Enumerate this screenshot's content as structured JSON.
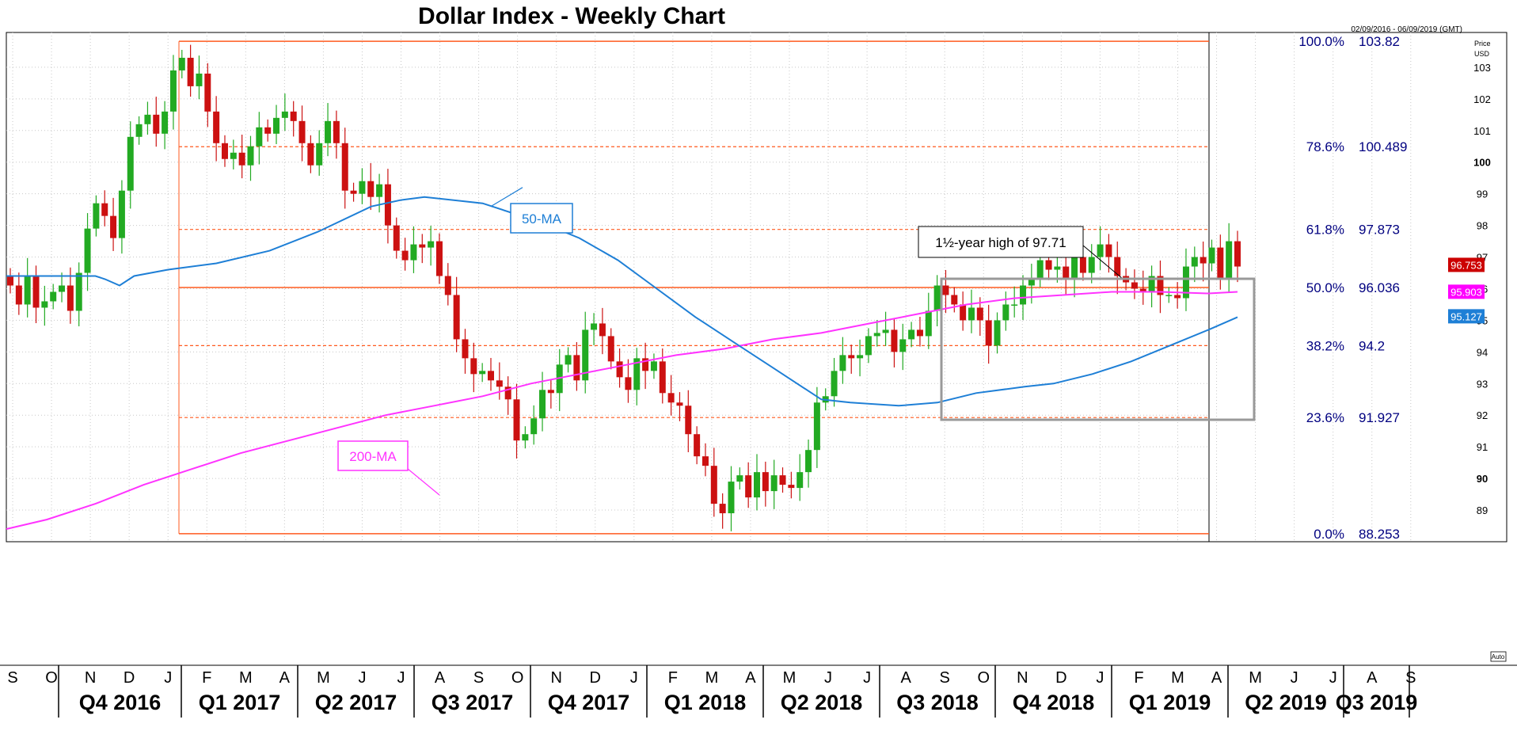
{
  "chart_data": {
    "type": "candlestick",
    "title": "Dollar Index - Weekly Chart",
    "date_range": "02/09/2016 - 06/09/2019 (GMT)",
    "price_unit": [
      "Price",
      "USD"
    ],
    "ylim": [
      88.0,
      104.1
    ],
    "y_ticks": [
      {
        "v": 103,
        "label": "103",
        "bold": false
      },
      {
        "v": 102,
        "label": "102",
        "bold": false
      },
      {
        "v": 101,
        "label": "101",
        "bold": false
      },
      {
        "v": 100,
        "label": "100",
        "bold": true
      },
      {
        "v": 99,
        "label": "99",
        "bold": false
      },
      {
        "v": 98,
        "label": "98",
        "bold": false
      },
      {
        "v": 97,
        "label": "97",
        "bold": false
      },
      {
        "v": 96,
        "label": "96",
        "bold": false
      },
      {
        "v": 95,
        "label": "95",
        "bold": false
      },
      {
        "v": 94,
        "label": "94",
        "bold": false
      },
      {
        "v": 93,
        "label": "93",
        "bold": false
      },
      {
        "v": 92,
        "label": "92",
        "bold": false
      },
      {
        "v": 91,
        "label": "91",
        "bold": false
      },
      {
        "v": 90,
        "label": "90",
        "bold": true
      },
      {
        "v": 89,
        "label": "89",
        "bold": false
      }
    ],
    "months": [
      "S",
      "O",
      "N",
      "D",
      "J",
      "F",
      "M",
      "A",
      "M",
      "J",
      "J",
      "A",
      "S",
      "O",
      "N",
      "D",
      "J",
      "F",
      "M",
      "A",
      "M",
      "J",
      "J",
      "A",
      "S",
      "O",
      "N",
      "D",
      "J",
      "F",
      "M",
      "A",
      "M",
      "J",
      "J",
      "A",
      "S"
    ],
    "quarters": [
      "Q4 2016",
      "Q1 2017",
      "Q2 2017",
      "Q3 2017",
      "Q4 2017",
      "Q1 2018",
      "Q2 2018",
      "Q3 2018",
      "Q4 2018",
      "Q1 2019",
      "Q2 2019",
      "Q3 2019"
    ],
    "fib_levels": [
      {
        "pct": "100.0%",
        "value": "103.82",
        "v": 103.82,
        "solid": true
      },
      {
        "pct": "78.6%",
        "value": "100.489",
        "v": 100.489,
        "solid": false
      },
      {
        "pct": "61.8%",
        "value": "97.873",
        "v": 97.873,
        "solid": false
      },
      {
        "pct": "50.0%",
        "value": "96.036",
        "v": 96.036,
        "solid": true
      },
      {
        "pct": "38.2%",
        "value": "94.2",
        "v": 94.2,
        "solid": false
      },
      {
        "pct": "23.6%",
        "value": "91.927",
        "v": 91.927,
        "solid": false
      },
      {
        "pct": "0.0%",
        "value": "88.253",
        "v": 88.253,
        "solid": true
      }
    ],
    "price_tags": [
      {
        "label": "96.753",
        "v": 96.753,
        "color": "#cc0000"
      },
      {
        "label": "95.903",
        "v": 95.903,
        "color": "#ff00ff"
      },
      {
        "label": "95.127",
        "v": 95.127,
        "color": "#1e7fd6"
      }
    ],
    "annotations": {
      "ma50_label": "50-MA",
      "ma200_label": "200-MA",
      "high_label": "1½-year high of 97.71",
      "auto": "Auto"
    },
    "colors": {
      "up": "#22aa22",
      "down": "#cc1111",
      "ma50": "#1e7fd6",
      "ma200": "#ff33ff",
      "fib": "#ff5a1f",
      "box": "#999999",
      "axis_text": "#000080"
    },
    "closes": [
      96.1,
      95.5,
      96.4,
      95.4,
      95.6,
      95.9,
      96.1,
      95.3,
      96.5,
      97.9,
      98.7,
      98.3,
      97.6,
      99.1,
      100.8,
      101.2,
      101.5,
      100.9,
      101.6,
      102.9,
      103.3,
      102.4,
      102.8,
      101.6,
      100.6,
      100.1,
      100.3,
      99.9,
      100.5,
      101.1,
      100.9,
      101.4,
      101.6,
      101.3,
      100.6,
      99.9,
      100.6,
      101.3,
      100.6,
      99.1,
      99.0,
      99.4,
      98.9,
      99.3,
      98.0,
      97.2,
      96.9,
      97.4,
      97.3,
      97.5,
      96.4,
      95.8,
      94.4,
      93.8,
      93.3,
      93.4,
      93.1,
      92.9,
      92.5,
      91.2,
      91.4,
      91.9,
      92.8,
      92.7,
      93.6,
      93.9,
      93.1,
      94.7,
      94.9,
      94.5,
      93.7,
      93.2,
      92.8,
      93.8,
      93.4,
      93.7,
      92.7,
      92.4,
      92.3,
      91.4,
      90.7,
      90.4,
      89.2,
      88.9,
      89.9,
      90.1,
      89.4,
      90.2,
      89.6,
      90.1,
      89.8,
      89.7,
      90.2,
      90.9,
      92.4,
      92.6,
      93.4,
      93.9,
      93.8,
      93.9,
      94.5,
      94.6,
      94.7,
      94.0,
      94.4,
      94.7,
      94.5,
      95.3,
      96.1,
      95.8,
      95.5,
      95.0,
      95.4,
      95.0,
      94.2,
      95.0,
      95.5,
      95.5,
      96.1,
      96.3,
      96.9,
      96.6,
      96.7,
      96.3,
      97.0,
      96.5,
      97.0,
      97.4,
      97.0,
      96.4,
      96.2,
      96.0,
      95.9,
      96.4,
      95.8,
      95.8,
      95.7,
      96.7,
      97.0,
      96.8,
      97.3,
      96.3,
      97.5,
      96.7
    ],
    "ma50": [
      [
        8,
        96.4
      ],
      [
        100,
        96.4
      ],
      [
        110,
        96.3
      ],
      [
        125,
        96.1
      ],
      [
        140,
        96.4
      ],
      [
        175,
        96.6
      ],
      [
        225,
        96.8
      ],
      [
        280,
        97.2
      ],
      [
        330,
        97.8
      ],
      [
        385,
        98.6
      ],
      [
        415,
        98.8
      ],
      [
        440,
        98.9
      ],
      [
        500,
        98.7
      ],
      [
        560,
        98.1
      ],
      [
        600,
        97.6
      ],
      [
        640,
        96.9
      ],
      [
        680,
        96.0
      ],
      [
        720,
        95.1
      ],
      [
        760,
        94.3
      ],
      [
        800,
        93.5
      ],
      [
        850,
        92.5
      ],
      [
        880,
        92.4
      ],
      [
        930,
        92.3
      ],
      [
        970,
        92.4
      ],
      [
        1010,
        92.7
      ],
      [
        1060,
        92.9
      ],
      [
        1090,
        93.0
      ],
      [
        1130,
        93.3
      ],
      [
        1170,
        93.7
      ],
      [
        1210,
        94.2
      ],
      [
        1250,
        94.7
      ],
      [
        1280,
        95.1
      ]
    ],
    "ma200": [
      [
        8,
        88.4
      ],
      [
        50,
        88.7
      ],
      [
        100,
        89.2
      ],
      [
        150,
        89.8
      ],
      [
        200,
        90.3
      ],
      [
        250,
        90.8
      ],
      [
        300,
        91.2
      ],
      [
        350,
        91.6
      ],
      [
        400,
        92.0
      ],
      [
        450,
        92.3
      ],
      [
        500,
        92.6
      ],
      [
        550,
        93.0
      ],
      [
        600,
        93.3
      ],
      [
        650,
        93.6
      ],
      [
        700,
        93.9
      ],
      [
        750,
        94.1
      ],
      [
        800,
        94.4
      ],
      [
        850,
        94.6
      ],
      [
        900,
        94.9
      ],
      [
        950,
        95.2
      ],
      [
        1000,
        95.5
      ],
      [
        1050,
        95.7
      ],
      [
        1100,
        95.8
      ],
      [
        1150,
        95.9
      ],
      [
        1200,
        95.9
      ],
      [
        1250,
        95.85
      ],
      [
        1280,
        95.9
      ]
    ]
  }
}
